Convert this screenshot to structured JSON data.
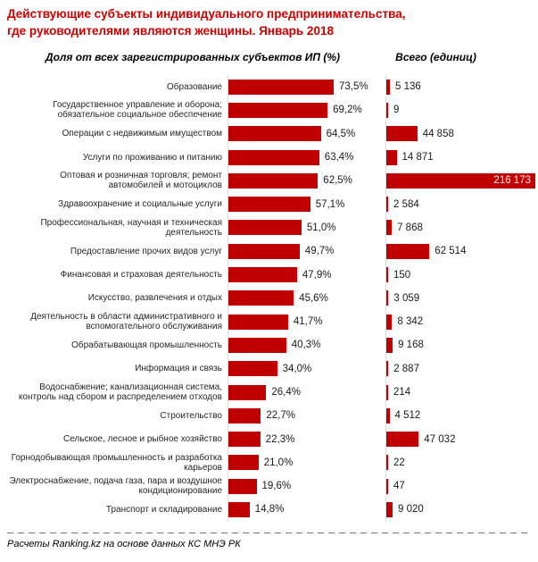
{
  "title": {
    "line1": "Действующие субъекты индивидуального предпринимательства,",
    "line2": "где руководителями являются женщины. Январь 2018"
  },
  "headers": {
    "left": "Доля от всех зарегистрированных  субъектов ИП (%)",
    "right": "Всего (единиц)"
  },
  "chart_data": {
    "type": "bar",
    "orientation": "horizontal",
    "title": "Действующие субъекты индивидуального предпринимательства, где руководителями являются женщины. Январь 2018",
    "categories": [
      "Образование",
      "Государственное управление и оборона; обязательное социальное обеспечение",
      "Операции с недвижимым имуществом",
      "Услуги по проживанию и питанию",
      "Оптовая и розничная торговля; ремонт автомобилей и мотоциклов",
      "Здравоохранение и социальные услуги",
      "Профессиональная, научная и техническая деятельность",
      "Предоставление прочих видов услуг",
      "Финансовая и страховая деятельность",
      "Искусство, развлечения и отдых",
      "Деятельность в области административного и вспомогательного обслуживания",
      "Обрабатывающая промышленность",
      "Информация и связь",
      "Водоснабжение; канализационная система, контроль над сбором и распределением отходов",
      "Строительство",
      "Сельское, лесное и рыбное хозяйство",
      "Горнодобывающая промышленность и разработка карьеров",
      "Электроснабжение, подача газа, пара и воздушное кондиционирование",
      "Транспорт и складирование"
    ],
    "series": [
      {
        "name": "Доля от всех зарегистрированных субъектов ИП (%)",
        "values": [
          73.5,
          69.2,
          64.5,
          63.4,
          62.5,
          57.1,
          51.0,
          49.7,
          47.9,
          45.6,
          41.7,
          40.3,
          34.0,
          26.4,
          22.7,
          22.3,
          21.0,
          19.6,
          14.8
        ],
        "labels": [
          "73,5%",
          "69,2%",
          "64,5%",
          "63,4%",
          "62,5%",
          "57,1%",
          "51,0%",
          "49,7%",
          "47,9%",
          "45,6%",
          "41,7%",
          "40,3%",
          "34,0%",
          "26,4%",
          "22,7%",
          "22,3%",
          "21,0%",
          "19,6%",
          "14,8%"
        ]
      },
      {
        "name": "Всего (единиц)",
        "values": [
          5136,
          9,
          44858,
          14871,
          216173,
          2584,
          7868,
          62514,
          150,
          3059,
          8342,
          9168,
          2887,
          214,
          4512,
          47032,
          22,
          47,
          9020
        ],
        "labels": [
          "5 136",
          "9",
          "44 858",
          "14 871",
          "216 173",
          "2 584",
          "7 868",
          "62 514",
          "150",
          "3 059",
          "8 342",
          "9 168",
          "2 887",
          "214",
          "4 512",
          "47 032",
          "22",
          "47",
          "9 020"
        ]
      }
    ],
    "xlim_pct": [
      0,
      80
    ],
    "xlim_total": [
      0,
      216173
    ],
    "grid": false,
    "legend": "none",
    "value_labels": "outside-end; max total bar labeled inside in white"
  },
  "footer": {
    "source": "Расчеты Ranking.kz на основе данных КС МНЭ РК"
  },
  "colors": {
    "title": "#cc0000",
    "bar": "#c00000",
    "axis": "#d9d9d9",
    "inside_label": "#ffffff",
    "text": "#1a1a1a"
  }
}
